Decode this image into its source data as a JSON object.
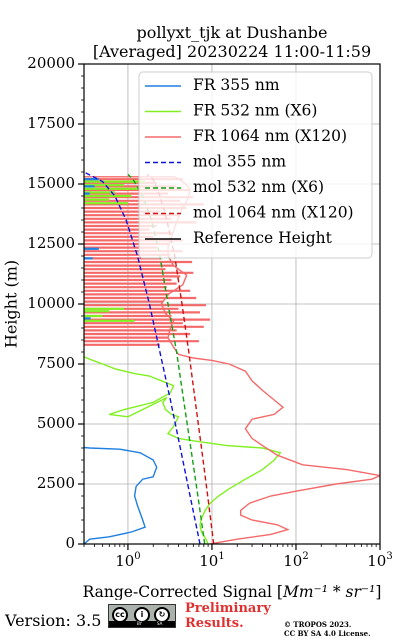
{
  "chart_data": {
    "type": "line",
    "title_line1": "pollyxt_tjk at Dushanbe",
    "title_line2": "[Averaged] 20230224 11:00-11:59",
    "ylabel": "Height (m)",
    "xlabel_prefix": "Range-Corrected Signal [",
    "xlabel_math": "Mm⁻¹ * sr⁻¹",
    "xlabel_suffix": "]",
    "x_scale": "log",
    "xlim": [
      0.3,
      1000
    ],
    "ylim": [
      0,
      20000
    ],
    "grid": true,
    "legend_position": "upper-right",
    "y_ticks": [
      "0",
      "2500",
      "5000",
      "7500",
      "10000",
      "12500",
      "15000",
      "17500",
      "20000"
    ],
    "x_ticks": [
      {
        "base": "10",
        "exp": "0"
      },
      {
        "base": "10",
        "exp": "1"
      },
      {
        "base": "10",
        "exp": "2"
      },
      {
        "base": "10",
        "exp": "3"
      }
    ],
    "legend": [
      {
        "label": "FR 355 nm",
        "color": "#1f7fe0",
        "style": "solid"
      },
      {
        "label": "FR 532 nm (X6)",
        "color": "#80f020",
        "style": "solid"
      },
      {
        "label": "FR 1064 nm (X120)",
        "color": "#f46a6a",
        "style": "solid"
      },
      {
        "label": "mol 355 nm",
        "color": "#1010dd",
        "style": "dashed"
      },
      {
        "label": "mol 532 nm (X6)",
        "color": "#10a010",
        "style": "dashed"
      },
      {
        "label": "mol 1064 nm (X120)",
        "color": "#d01010",
        "style": "dashed"
      },
      {
        "label": "Reference Height",
        "color": "#000000",
        "style": "solid"
      }
    ],
    "series": [
      {
        "name": "FR 355 nm",
        "color": "#1f7fe0",
        "style": "solid",
        "points": [
          [
            0.3,
            0
          ],
          [
            0.35,
            200
          ],
          [
            0.6,
            300
          ],
          [
            1.1,
            500
          ],
          [
            1.6,
            700
          ],
          [
            1.5,
            1000
          ],
          [
            1.3,
            1600
          ],
          [
            1.2,
            2000
          ],
          [
            1.25,
            2400
          ],
          [
            1.5,
            2700
          ],
          [
            2.0,
            2800
          ],
          [
            2.2,
            3200
          ],
          [
            2.0,
            3500
          ],
          [
            1.4,
            3800
          ],
          [
            0.8,
            3950
          ],
          [
            0.35,
            4000
          ],
          [
            0.3,
            4020
          ]
        ]
      },
      {
        "name": "FR 532 nm (X6)",
        "color": "#80f020",
        "style": "solid",
        "points": [
          [
            9,
            0
          ],
          [
            8.5,
            200
          ],
          [
            7.5,
            500
          ],
          [
            7.2,
            800
          ],
          [
            7.6,
            1100
          ],
          [
            8.3,
            1400
          ],
          [
            9.5,
            1700
          ],
          [
            12,
            2000
          ],
          [
            16,
            2300
          ],
          [
            25,
            2700
          ],
          [
            40,
            3100
          ],
          [
            55,
            3500
          ],
          [
            65,
            3800
          ],
          [
            40,
            4000
          ],
          [
            15,
            4100
          ],
          [
            6,
            4300
          ],
          [
            4,
            4400
          ],
          [
            3,
            4600
          ],
          [
            3.5,
            4900
          ],
          [
            4,
            5300
          ],
          [
            3.3,
            5400
          ],
          [
            2.8,
            5600
          ],
          [
            2.6,
            5900
          ],
          [
            2.9,
            6100
          ],
          [
            1,
            5300
          ],
          [
            0.6,
            5400
          ],
          [
            0.9,
            5600
          ],
          [
            2,
            5900
          ],
          [
            3.2,
            6300
          ],
          [
            3.5,
            6600
          ],
          [
            2.5,
            6800
          ],
          [
            1.8,
            7000
          ],
          [
            1.2,
            7100
          ],
          [
            0.7,
            7300
          ],
          [
            0.5,
            7500
          ],
          [
            0.35,
            7700
          ],
          [
            0.3,
            7800
          ]
        ]
      },
      {
        "name": "FR 1064 nm (X120)",
        "color": "#f46a6a",
        "style": "solid",
        "points": [
          [
            9.5,
            0
          ],
          [
            20,
            200
          ],
          [
            50,
            400
          ],
          [
            80,
            600
          ],
          [
            60,
            800
          ],
          [
            30,
            1000
          ],
          [
            22,
            1200
          ],
          [
            22,
            1400
          ],
          [
            28,
            1700
          ],
          [
            50,
            2000
          ],
          [
            100,
            2200
          ],
          [
            300,
            2500
          ],
          [
            800,
            2700
          ],
          [
            1000,
            2850
          ],
          [
            400,
            3100
          ],
          [
            120,
            3300
          ],
          [
            60,
            3700
          ],
          [
            40,
            4100
          ],
          [
            30,
            4400
          ],
          [
            25,
            4800
          ],
          [
            30,
            5200
          ],
          [
            55,
            5400
          ],
          [
            70,
            5700
          ],
          [
            55,
            6000
          ],
          [
            40,
            6400
          ],
          [
            30,
            6800
          ],
          [
            25,
            7200
          ],
          [
            16,
            7500
          ],
          [
            10,
            7650
          ],
          [
            6,
            7750
          ],
          [
            4,
            7900
          ],
          [
            3.5,
            8200
          ],
          [
            3.0,
            8600
          ],
          [
            3.2,
            9000
          ],
          [
            3.5,
            9300
          ],
          [
            2.8,
            9600
          ],
          [
            2.5,
            10000
          ],
          [
            3.0,
            10400
          ],
          [
            4.5,
            10800
          ],
          [
            5.0,
            11200
          ],
          [
            3.5,
            11600
          ],
          [
            3.0,
            12000
          ],
          [
            3.0,
            12400
          ],
          [
            3.3,
            12800
          ],
          [
            3.6,
            13200
          ],
          [
            4.0,
            13600
          ],
          [
            4.5,
            14000
          ],
          [
            5.2,
            14400
          ],
          [
            5.5,
            14800
          ],
          [
            4.5,
            15100
          ],
          [
            3.6,
            15300
          ],
          [
            0.3,
            15300
          ]
        ]
      },
      {
        "name": "mol 355 nm",
        "color": "#1010dd",
        "style": "dashed",
        "points": [
          [
            7.2,
            0
          ],
          [
            5.5,
            2000
          ],
          [
            4.2,
            4000
          ],
          [
            3.2,
            6000
          ],
          [
            2.4,
            8000
          ],
          [
            1.8,
            10000
          ],
          [
            1.3,
            12000
          ],
          [
            0.95,
            13500
          ],
          [
            0.7,
            14500
          ],
          [
            0.5,
            15100
          ],
          [
            0.3,
            15500
          ]
        ]
      },
      {
        "name": "mol 532 nm (X6)",
        "color": "#10a010",
        "style": "dashed",
        "points": [
          [
            8.2,
            0
          ],
          [
            6.8,
            2000
          ],
          [
            5.6,
            4000
          ],
          [
            4.6,
            6000
          ],
          [
            3.8,
            8000
          ],
          [
            3.0,
            10000
          ],
          [
            2.4,
            12000
          ],
          [
            1.9,
            13500
          ],
          [
            1.5,
            14500
          ],
          [
            1.15,
            15200
          ],
          [
            1.0,
            15400
          ]
        ]
      },
      {
        "name": "mol 1064 nm (X120)",
        "color": "#d01010",
        "style": "dashed",
        "points": [
          [
            10.5,
            0
          ],
          [
            8.9,
            2000
          ],
          [
            7.5,
            4000
          ],
          [
            6.3,
            6000
          ],
          [
            5.3,
            8000
          ],
          [
            4.4,
            10000
          ],
          [
            3.6,
            12000
          ],
          [
            2.9,
            13500
          ],
          [
            2.4,
            14500
          ],
          [
            2.0,
            15200
          ],
          [
            1.7,
            15400
          ]
        ]
      }
    ],
    "noise_1064": [
      [
        15200,
        4.5
      ],
      [
        15050,
        2.2
      ],
      [
        14900,
        3.8
      ],
      [
        14750,
        5.5
      ],
      [
        14600,
        3.0
      ],
      [
        14450,
        6.0
      ],
      [
        14300,
        4.2
      ],
      [
        14150,
        8.0
      ],
      [
        14000,
        5.0
      ],
      [
        13850,
        2.4
      ],
      [
        13700,
        4.0
      ],
      [
        13550,
        3.3
      ],
      [
        13400,
        6.5
      ],
      [
        13250,
        2.2
      ],
      [
        13100,
        1.8
      ],
      [
        12950,
        3.5
      ],
      [
        12800,
        2.0
      ],
      [
        12650,
        4.5
      ],
      [
        12500,
        3.0
      ],
      [
        12350,
        2.2
      ],
      [
        12200,
        4.5
      ],
      [
        12050,
        3.2
      ],
      [
        11900,
        2.5
      ],
      [
        11750,
        5.8
      ],
      [
        11600,
        3.5
      ],
      [
        11450,
        2.8
      ],
      [
        11300,
        6.0
      ],
      [
        11150,
        4.2
      ],
      [
        11000,
        3.3
      ],
      [
        10850,
        3.8
      ],
      [
        10700,
        2.9
      ],
      [
        10550,
        5.5
      ],
      [
        10400,
        3.1
      ],
      [
        10250,
        6.5
      ],
      [
        10100,
        2.6
      ],
      [
        9950,
        8.5
      ],
      [
        9800,
        4.0
      ],
      [
        9650,
        7.2
      ],
      [
        9500,
        3.3
      ],
      [
        9350,
        9.5
      ],
      [
        9200,
        4.5
      ],
      [
        9050,
        8.0
      ],
      [
        8900,
        3.8
      ],
      [
        8750,
        5.5
      ],
      [
        8600,
        3.0
      ],
      [
        8450,
        7.0
      ],
      [
        8300,
        2.4
      ]
    ],
    "noise_532": [
      [
        15100,
        1.6
      ],
      [
        14950,
        0.9
      ],
      [
        14800,
        1.3
      ],
      [
        14650,
        0.7
      ],
      [
        14500,
        1.1
      ],
      [
        14350,
        0.6
      ],
      [
        14200,
        1.0
      ],
      [
        9800,
        0.9
      ],
      [
        9700,
        0.6
      ],
      [
        9500,
        0.5
      ],
      [
        9300,
        1.2
      ]
    ],
    "noise_355": [
      [
        15200,
        0.45
      ],
      [
        14900,
        0.4
      ],
      [
        14600,
        0.35
      ],
      [
        12300,
        0.45
      ],
      [
        11900,
        0.38
      ],
      [
        9400,
        0.36
      ]
    ]
  },
  "footer": {
    "version": "Version: 3.5",
    "license_badge": [
      "cc",
      "by",
      "sa"
    ],
    "license_badge_labels": [
      "BY",
      "SA"
    ],
    "preliminary_line1": "Preliminary",
    "preliminary_line2": "Results.",
    "copyright_line1": "© TROPOS 2023.",
    "copyright_line2": "CC BY SA 4.0 License."
  }
}
